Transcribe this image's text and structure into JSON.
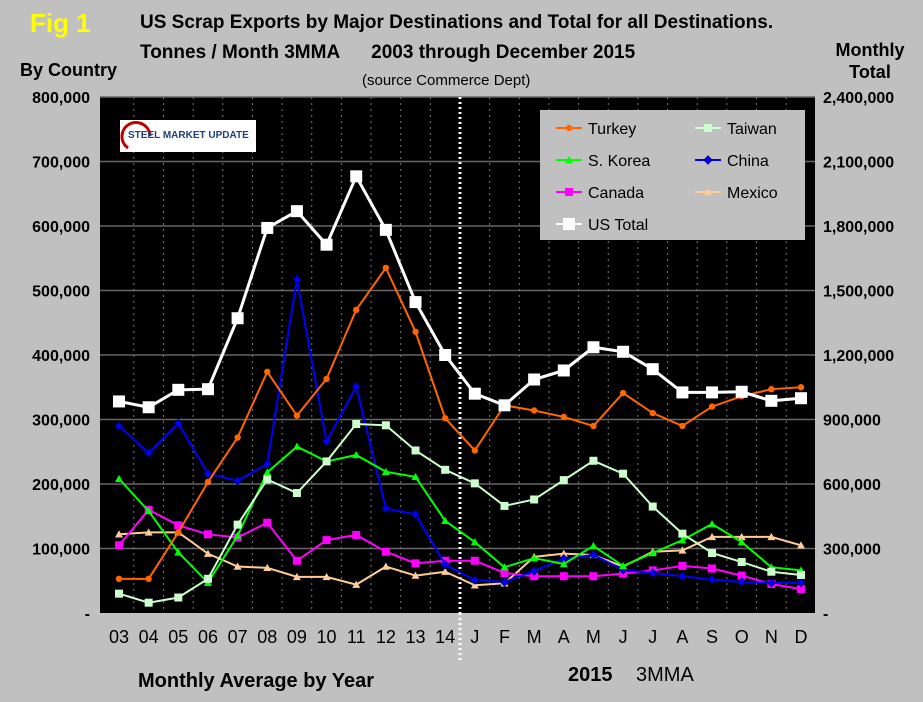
{
  "chart_data": {
    "type": "line",
    "fig_label": "Fig 1",
    "title": "US Scrap Exports by Major Destinations and Total for all Destinations.",
    "subtitle": "Tonnes / Month 3MMA      2003 through December 2015",
    "source": "(source Commerce Dept)",
    "ylabel_left": "By Country",
    "ylabel_right_line1": "Monthly",
    "ylabel_right_line2": "Total",
    "xlabel_left": "Monthly Average by Year",
    "xlabel_right_year": "2015",
    "xlabel_right_suffix": "3MMA",
    "logo_text": "STEEL MARKET UPDATE",
    "categories": [
      "03",
      "04",
      "05",
      "06",
      "07",
      "08",
      "09",
      "10",
      "11",
      "12",
      "13",
      "14",
      "J",
      "F",
      "M",
      "A",
      "M",
      "J",
      "J",
      "A",
      "S",
      "O",
      "N",
      "D"
    ],
    "ylim_left": [
      0,
      800000
    ],
    "ylim_right": [
      0,
      2400000
    ],
    "yticks_left": [
      "-",
      "100,000",
      "200,000",
      "300,000",
      "400,000",
      "500,000",
      "600,000",
      "700,000",
      "800,000"
    ],
    "yticks_right": [
      "-",
      "300,000",
      "600,000",
      "900,000",
      "1,200,000",
      "1,500,000",
      "1,800,000",
      "2,100,000",
      "2,400,000"
    ],
    "grid": "horizontal solid, vertical dotted",
    "legend_placement": "top-right",
    "series": [
      {
        "name": "Turkey",
        "color": "#ff6600",
        "marker": "circle",
        "axis": "left",
        "values": [
          53000,
          53000,
          125000,
          203000,
          272000,
          374000,
          306000,
          363000,
          470000,
          535000,
          436000,
          302000,
          252000,
          322000,
          314000,
          304000,
          290000,
          341000,
          310000,
          290000,
          320000,
          336000,
          347000,
          350000
        ]
      },
      {
        "name": "Taiwan",
        "color": "#ccffcc",
        "marker": "square",
        "axis": "left",
        "values": [
          30000,
          16000,
          24000,
          53000,
          137000,
          207000,
          186000,
          235000,
          293000,
          291000,
          252000,
          222000,
          201000,
          166000,
          176000,
          206000,
          236000,
          216000,
          165000,
          123000,
          93000,
          79000,
          64000,
          59000
        ]
      },
      {
        "name": "S. Korea",
        "color": "#00ff00",
        "marker": "triangle",
        "axis": "left",
        "values": [
          208000,
          158000,
          94000,
          47000,
          120000,
          218000,
          258000,
          235000,
          245000,
          219000,
          211000,
          143000,
          110000,
          71000,
          85000,
          76000,
          104000,
          73000,
          93000,
          113000,
          138000,
          110000,
          71000,
          66000
        ]
      },
      {
        "name": "China",
        "color": "#0000ff",
        "marker": "diamond",
        "axis": "left",
        "values": [
          290000,
          248000,
          294000,
          216000,
          205000,
          231000,
          517000,
          266000,
          351000,
          162000,
          153000,
          75000,
          51000,
          48000,
          65000,
          84000,
          90000,
          67000,
          62000,
          57000,
          52000,
          48000,
          47000,
          47000
        ]
      },
      {
        "name": "Canada",
        "color": "#ff00ff",
        "marker": "square",
        "axis": "left",
        "values": [
          105000,
          160000,
          136000,
          122000,
          117000,
          140000,
          81000,
          113000,
          121000,
          95000,
          77000,
          81000,
          81000,
          62000,
          57000,
          57000,
          57000,
          61000,
          66000,
          73000,
          69000,
          58000,
          45000,
          37000
        ]
      },
      {
        "name": "Mexico",
        "color": "#ffcc99",
        "marker": "triangle",
        "axis": "left",
        "values": [
          122000,
          125000,
          125000,
          92000,
          72000,
          70000,
          56000,
          56000,
          44000,
          72000,
          58000,
          64000,
          43000,
          46000,
          87000,
          92000,
          90000,
          72000,
          95000,
          97000,
          118000,
          118000,
          118000,
          105000
        ]
      },
      {
        "name": "US Total",
        "color": "#ffffff",
        "marker": "square",
        "axis": "right",
        "values": [
          984000,
          957000,
          1038000,
          1041000,
          1371000,
          1791000,
          1869000,
          1713000,
          2031000,
          1782000,
          1446000,
          1200000,
          1020000,
          966000,
          1086000,
          1128000,
          1236000,
          1215000,
          1134000,
          1026000,
          1026000,
          1029000,
          987000,
          999000
        ]
      }
    ]
  }
}
